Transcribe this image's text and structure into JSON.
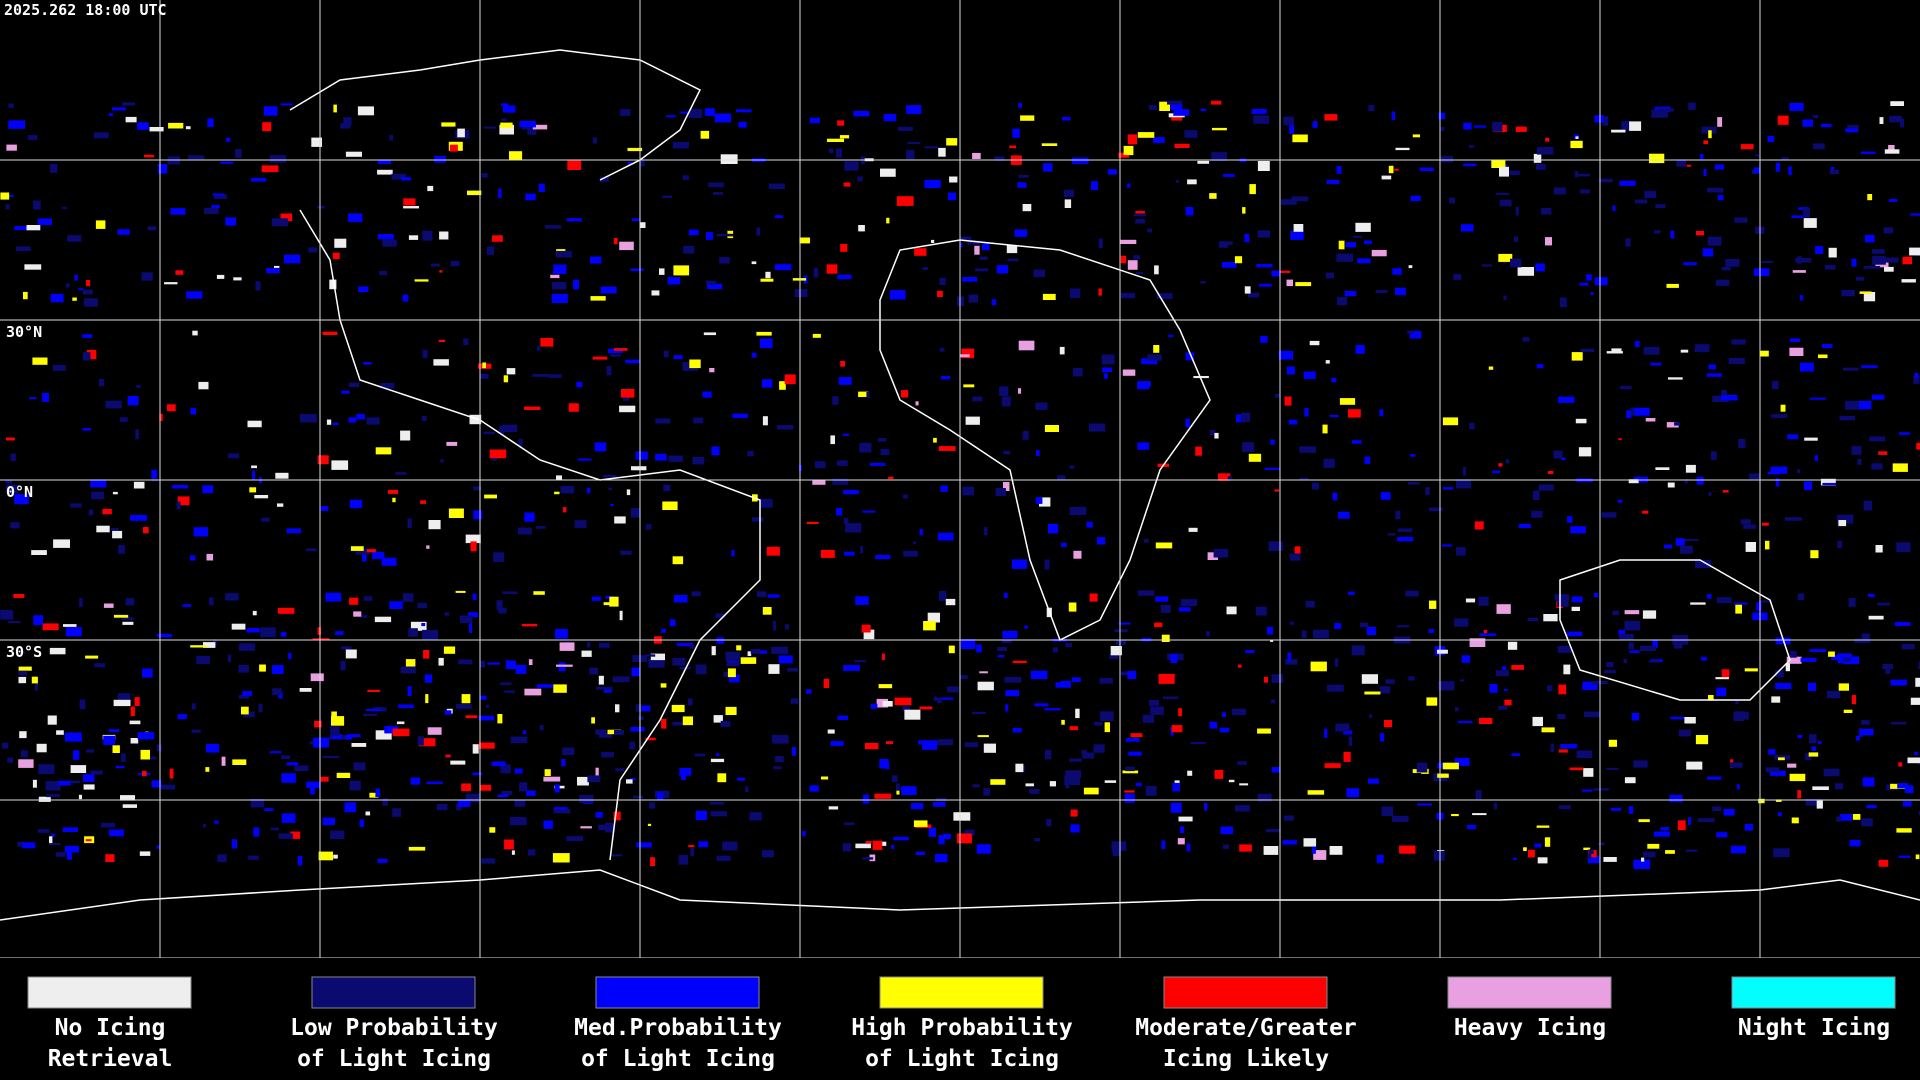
{
  "header": {
    "timestamp": "2025.262 18:00 UTC"
  },
  "map": {
    "latitude_labels": [
      "30°N",
      "0°N",
      "30°S"
    ]
  },
  "legend": {
    "items": [
      {
        "label_lines": [
          "No Icing",
          "Retrieval"
        ],
        "color": "#eeeeee"
      },
      {
        "label_lines": [
          "Low Probability",
          "of Light Icing"
        ],
        "color": "#0a0a70"
      },
      {
        "label_lines": [
          "Med.Probability",
          "of Light Icing"
        ],
        "color": "#0000ff"
      },
      {
        "label_lines": [
          "High Probability",
          "of Light Icing"
        ],
        "color": "#ffff00"
      },
      {
        "label_lines": [
          "Moderate/Greater",
          "Icing Likely"
        ],
        "color": "#ff0000"
      },
      {
        "label_lines": [
          "Heavy Icing"
        ],
        "color": "#e8a0e0"
      },
      {
        "label_lines": [
          "Night Icing"
        ],
        "color": "#00ffff"
      }
    ]
  }
}
